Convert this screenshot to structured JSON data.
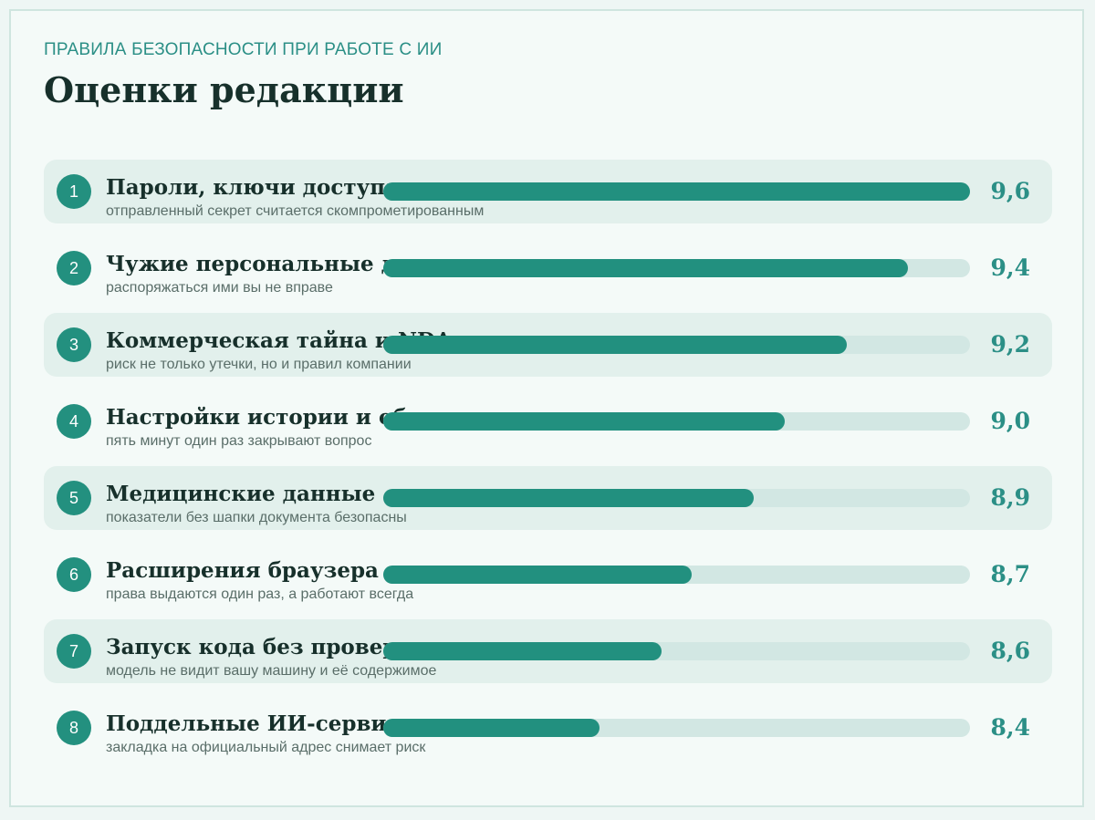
{
  "header": {
    "kicker": "ПРАВИЛА БЕЗОПАСНОСТИ ПРИ РАБОТЕ С ИИ",
    "title": "Оценки редакции"
  },
  "colors": {
    "accent": "#23907f",
    "track": "#d2e7e3",
    "row_shade": "#e2f0ec",
    "score_text": "#2b8f86"
  },
  "chart_data": {
    "type": "bar",
    "orientation": "horizontal",
    "xlim": [
      7.7,
      9.6
    ],
    "items": [
      {
        "rank": "1",
        "label": "Пароли, ключи доступа",
        "note": "отправленный секрет считается скомпрометированным",
        "value": 9.6,
        "value_label": "9,6"
      },
      {
        "rank": "2",
        "label": "Чужие персональные данные",
        "note": "распоряжаться ими вы не вправе",
        "value": 9.4,
        "value_label": "9,4"
      },
      {
        "rank": "3",
        "label": "Коммерческая тайна и NDA",
        "note": "риск не только утечки, но и правил компании",
        "value": 9.2,
        "value_label": "9,2"
      },
      {
        "rank": "4",
        "label": "Настройки истории и обучения",
        "note": "пять минут один раз закрывают вопрос",
        "value": 9.0,
        "value_label": "9,0"
      },
      {
        "rank": "5",
        "label": "Медицинские данные",
        "note": "показатели без шапки документа безопасны",
        "value": 8.9,
        "value_label": "8,9"
      },
      {
        "rank": "6",
        "label": "Расширения браузера",
        "note": "права выдаются один раз, а работают всегда",
        "value": 8.7,
        "value_label": "8,7"
      },
      {
        "rank": "7",
        "label": "Запуск кода без проверки",
        "note": "модель не видит вашу машину и её содержимое",
        "value": 8.6,
        "value_label": "8,6"
      },
      {
        "rank": "8",
        "label": "Поддельные ИИ-сервисы",
        "note": "закладка на официальный адрес снимает риск",
        "value": 8.4,
        "value_label": "8,4"
      }
    ]
  }
}
